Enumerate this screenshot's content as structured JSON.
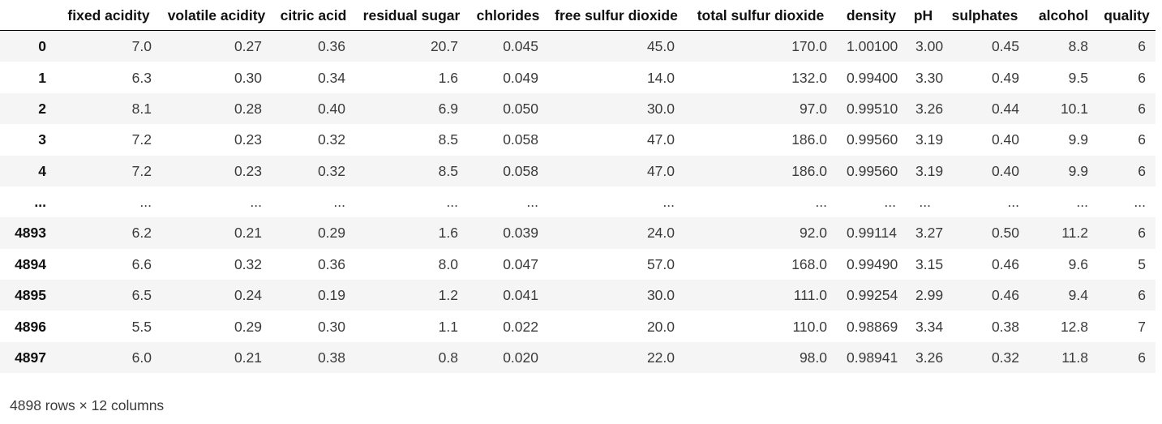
{
  "table": {
    "index_header": "",
    "columns": [
      "fixed acidity",
      "volatile acidity",
      "citric acid",
      "residual sugar",
      "chlorides",
      "free sulfur dioxide",
      "total sulfur dioxide",
      "density",
      "pH",
      "sulphates",
      "alcohol",
      "quality"
    ],
    "rows": [
      {
        "index": "0",
        "values": [
          "7.0",
          "0.27",
          "0.36",
          "20.7",
          "0.045",
          "45.0",
          "170.0",
          "1.00100",
          "3.00",
          "0.45",
          "8.8",
          "6"
        ]
      },
      {
        "index": "1",
        "values": [
          "6.3",
          "0.30",
          "0.34",
          "1.6",
          "0.049",
          "14.0",
          "132.0",
          "0.99400",
          "3.30",
          "0.49",
          "9.5",
          "6"
        ]
      },
      {
        "index": "2",
        "values": [
          "8.1",
          "0.28",
          "0.40",
          "6.9",
          "0.050",
          "30.0",
          "97.0",
          "0.99510",
          "3.26",
          "0.44",
          "10.1",
          "6"
        ]
      },
      {
        "index": "3",
        "values": [
          "7.2",
          "0.23",
          "0.32",
          "8.5",
          "0.058",
          "47.0",
          "186.0",
          "0.99560",
          "3.19",
          "0.40",
          "9.9",
          "6"
        ]
      },
      {
        "index": "4",
        "values": [
          "7.2",
          "0.23",
          "0.32",
          "8.5",
          "0.058",
          "47.0",
          "186.0",
          "0.99560",
          "3.19",
          "0.40",
          "9.9",
          "6"
        ]
      },
      {
        "index": "...",
        "values": [
          "...",
          "...",
          "...",
          "...",
          "...",
          "...",
          "...",
          "...",
          "...",
          "...",
          "...",
          "..."
        ]
      },
      {
        "index": "4893",
        "values": [
          "6.2",
          "0.21",
          "0.29",
          "1.6",
          "0.039",
          "24.0",
          "92.0",
          "0.99114",
          "3.27",
          "0.50",
          "11.2",
          "6"
        ]
      },
      {
        "index": "4894",
        "values": [
          "6.6",
          "0.32",
          "0.36",
          "8.0",
          "0.047",
          "57.0",
          "168.0",
          "0.99490",
          "3.15",
          "0.46",
          "9.6",
          "5"
        ]
      },
      {
        "index": "4895",
        "values": [
          "6.5",
          "0.24",
          "0.19",
          "1.2",
          "0.041",
          "30.0",
          "111.0",
          "0.99254",
          "2.99",
          "0.46",
          "9.4",
          "6"
        ]
      },
      {
        "index": "4896",
        "values": [
          "5.5",
          "0.29",
          "0.30",
          "1.1",
          "0.022",
          "20.0",
          "110.0",
          "0.98869",
          "3.34",
          "0.38",
          "12.8",
          "7"
        ]
      },
      {
        "index": "4897",
        "values": [
          "6.0",
          "0.21",
          "0.38",
          "0.8",
          "0.020",
          "22.0",
          "98.0",
          "0.98941",
          "3.26",
          "0.32",
          "11.8",
          "6"
        ]
      }
    ],
    "footer": "4898 rows × 12 columns"
  },
  "colors": {
    "stripe": "#f5f5f5",
    "header_text": "#111111",
    "cell_text": "#3b3b3b",
    "header_border": "#000000"
  }
}
